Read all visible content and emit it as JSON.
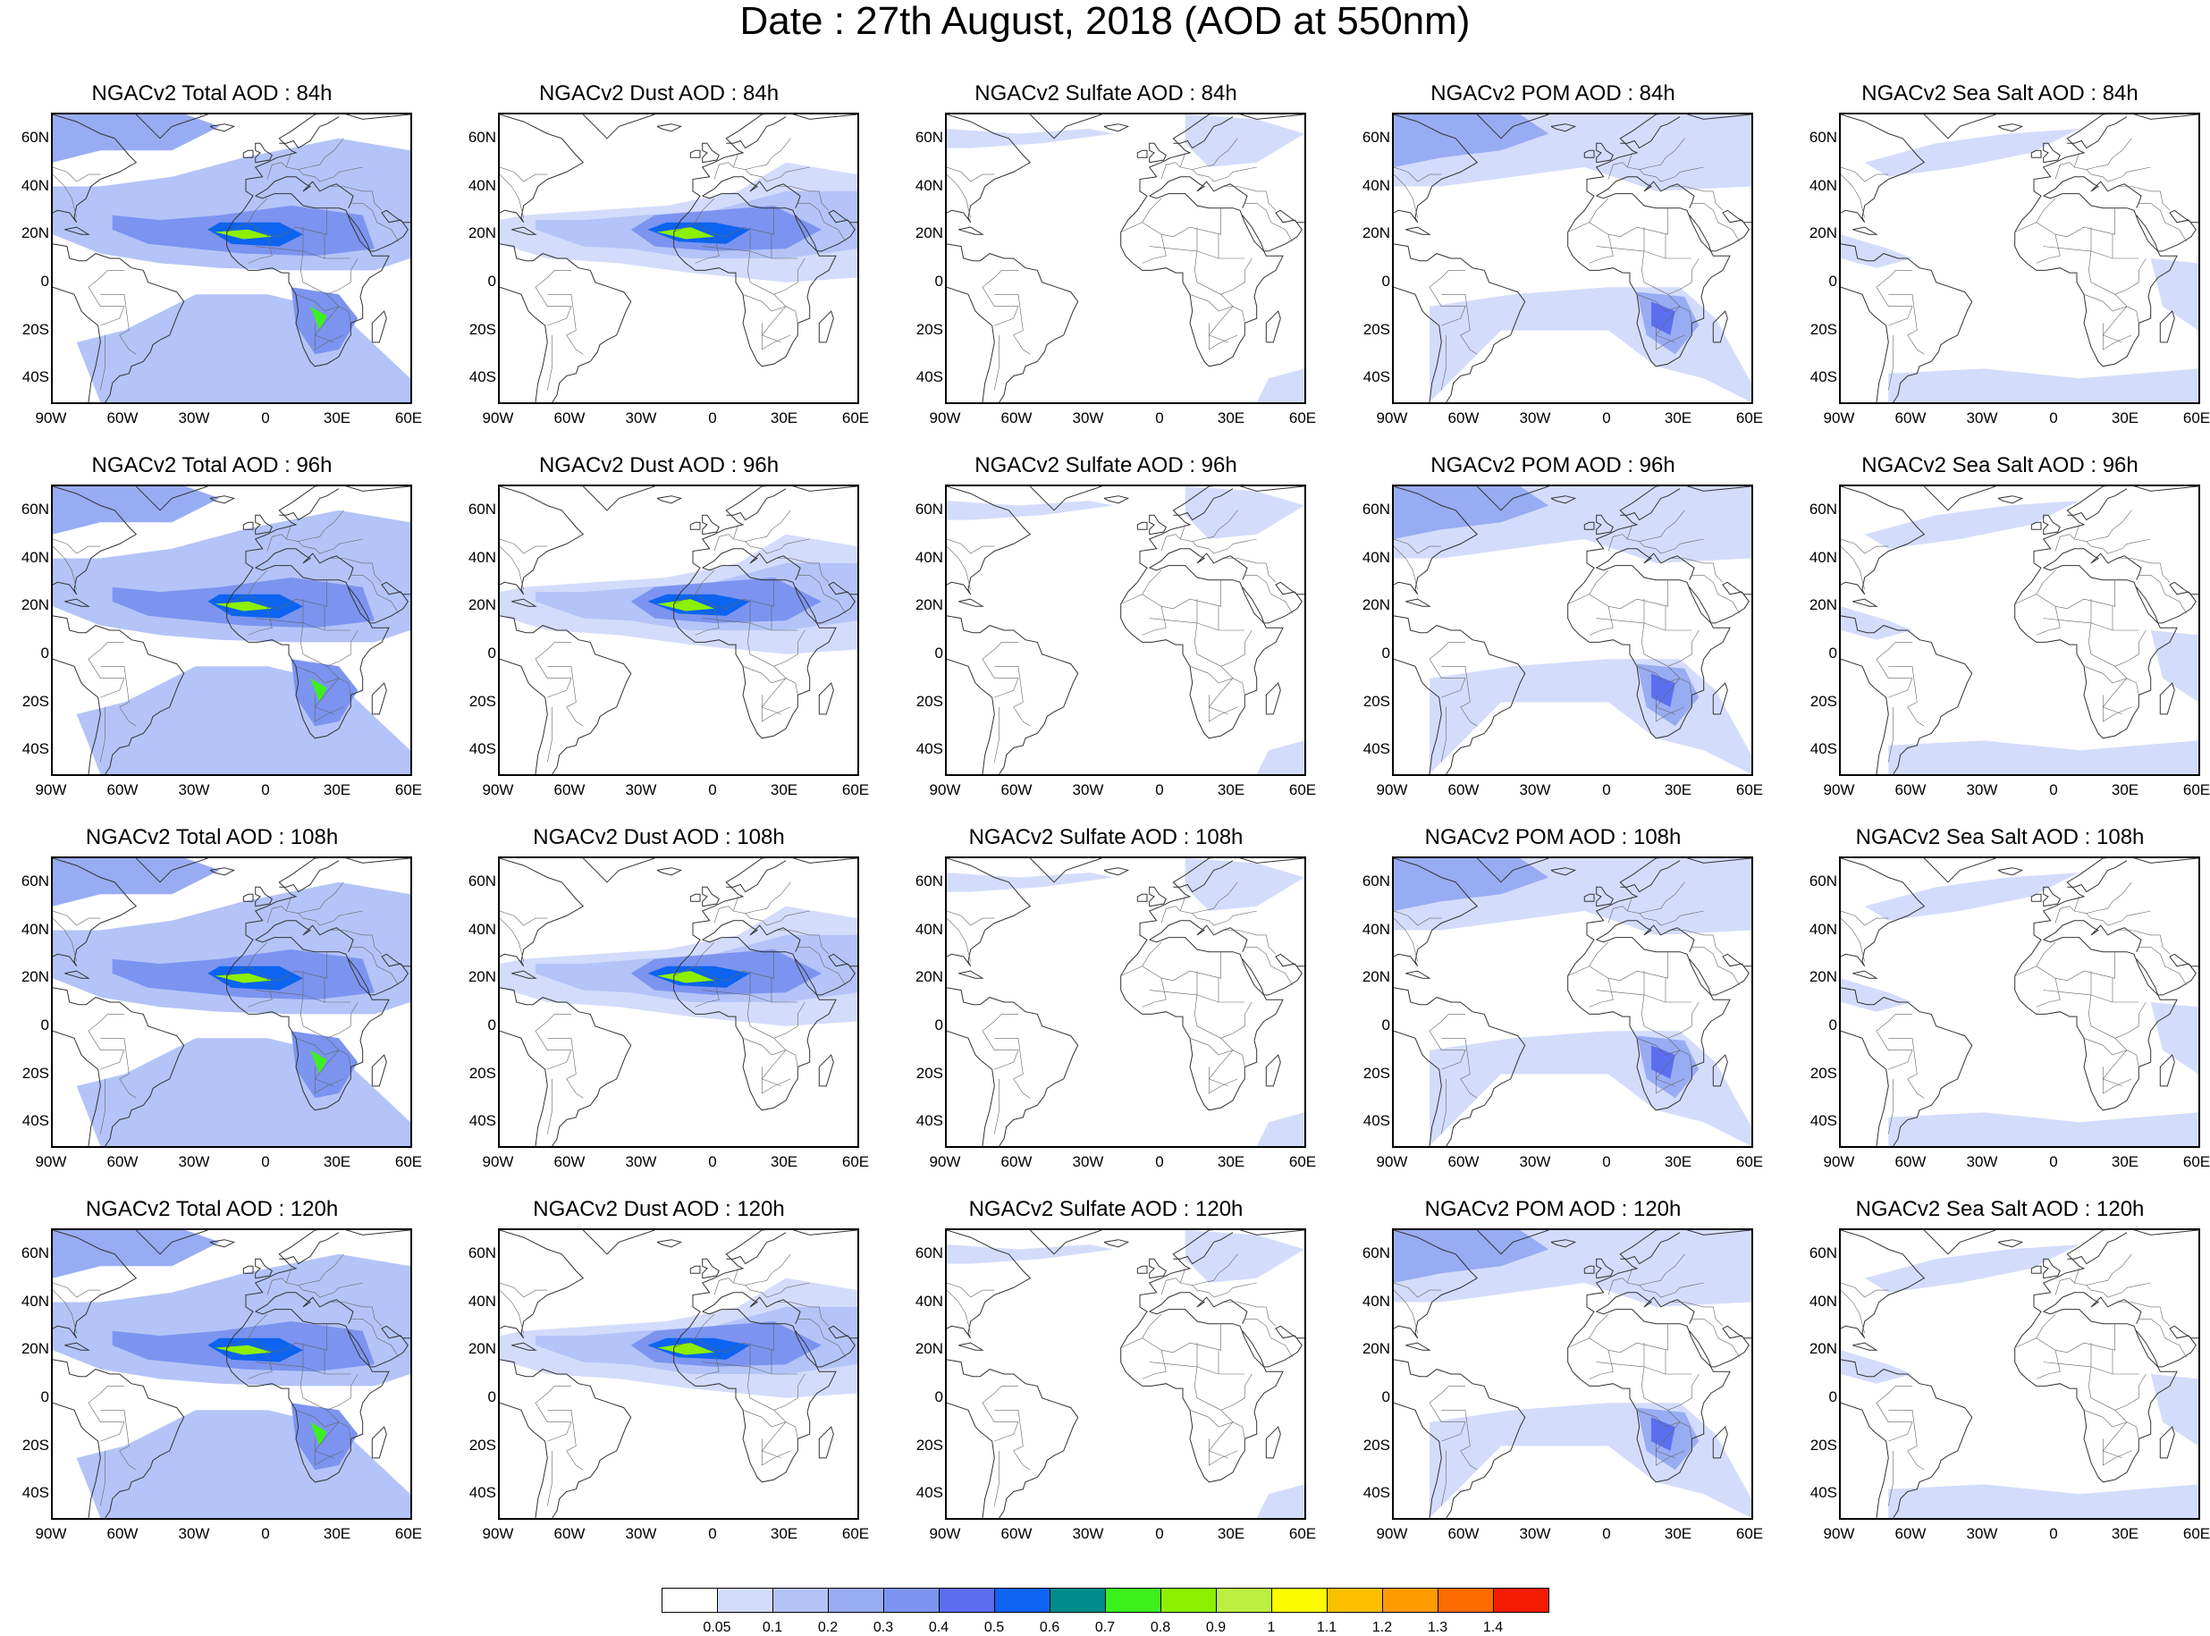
{
  "title": "Date : 27th August, 2018 (AOD at 550nm)",
  "lat_ticks": [
    "60N",
    "40N",
    "20N",
    "0",
    "20S",
    "40S"
  ],
  "lon_ticks": [
    "90W",
    "60W",
    "30W",
    "0",
    "30E",
    "60E"
  ],
  "panels": [
    {
      "title": "NGACv2 Total AOD : 84h",
      "species": "total",
      "hour": "84h"
    },
    {
      "title": "NGACv2 Dust AOD : 84h",
      "species": "dust",
      "hour": "84h"
    },
    {
      "title": "NGACv2 Sulfate AOD : 84h",
      "species": "sulfate",
      "hour": "84h"
    },
    {
      "title": "NGACv2 POM AOD : 84h",
      "species": "pom",
      "hour": "84h"
    },
    {
      "title": "NGACv2 Sea Salt AOD : 84h",
      "species": "seasalt",
      "hour": "84h"
    },
    {
      "title": "NGACv2 Total AOD : 96h",
      "species": "total",
      "hour": "96h"
    },
    {
      "title": "NGACv2 Dust AOD : 96h",
      "species": "dust",
      "hour": "96h"
    },
    {
      "title": "NGACv2 Sulfate AOD : 96h",
      "species": "sulfate",
      "hour": "96h"
    },
    {
      "title": "NGACv2 POM AOD : 96h",
      "species": "pom",
      "hour": "96h"
    },
    {
      "title": "NGACv2 Sea Salt AOD : 96h",
      "species": "seasalt",
      "hour": "96h"
    },
    {
      "title": "NGACv2 Total AOD : 108h",
      "species": "total",
      "hour": "108h"
    },
    {
      "title": "NGACv2 Dust AOD : 108h",
      "species": "dust",
      "hour": "108h"
    },
    {
      "title": "NGACv2 Sulfate AOD : 108h",
      "species": "sulfate",
      "hour": "108h"
    },
    {
      "title": "NGACv2 POM AOD : 108h",
      "species": "pom",
      "hour": "108h"
    },
    {
      "title": "NGACv2 Sea Salt AOD : 108h",
      "species": "seasalt",
      "hour": "108h"
    },
    {
      "title": "NGACv2 Total AOD : 120h",
      "species": "total",
      "hour": "120h"
    },
    {
      "title": "NGACv2 Dust AOD : 120h",
      "species": "dust",
      "hour": "120h"
    },
    {
      "title": "NGACv2 Sulfate AOD : 120h",
      "species": "sulfate",
      "hour": "120h"
    },
    {
      "title": "NGACv2 POM AOD : 120h",
      "species": "pom",
      "hour": "120h"
    },
    {
      "title": "NGACv2 Sea Salt  AOD : 120h",
      "species": "seasalt",
      "hour": "120h"
    }
  ],
  "colorbar": {
    "labels": [
      "0.05",
      "0.1",
      "0.2",
      "0.3",
      "0.4",
      "0.5",
      "0.6",
      "0.7",
      "0.8",
      "0.9",
      "1",
      "1.1",
      "1.2",
      "1.3",
      "1.4"
    ],
    "colors": [
      "#ffffff",
      "#d4dcfc",
      "#b4c4f8",
      "#98acf4",
      "#7c94f0",
      "#5c6ef0",
      "#0c64f0",
      "#008c8c",
      "#3cf01c",
      "#8cf000",
      "#bcf040",
      "#fcfc00",
      "#fcc000",
      "#fc9c00",
      "#fc6c00",
      "#f41c00"
    ]
  }
}
